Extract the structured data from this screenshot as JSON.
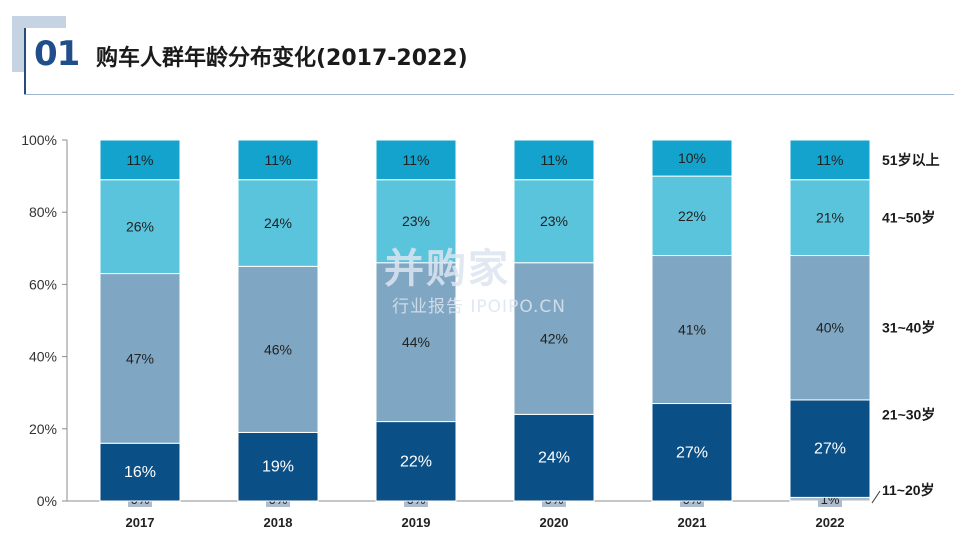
{
  "header": {
    "number": "01",
    "title": "购车人群年龄分布变化(2017-2022)"
  },
  "watermark": {
    "brand": "并购家",
    "sub": "行业报告 IPOIPO.CN"
  },
  "chart_data": {
    "type": "bar",
    "stacked": true,
    "categories": [
      "2017",
      "2018",
      "2019",
      "2020",
      "2021",
      "2022"
    ],
    "ylim": [
      0,
      100
    ],
    "yticks": [
      "0%",
      "20%",
      "40%",
      "60%",
      "80%",
      "100%"
    ],
    "grid": false,
    "legend_position": "right",
    "series": [
      {
        "name": "11~20岁",
        "color": "#aebccb",
        "values": [
          0,
          0,
          0,
          0,
          0,
          1
        ],
        "labels": [
          "0%",
          "0%",
          "0%",
          "0%",
          "0%",
          "1%"
        ]
      },
      {
        "name": "21~30岁",
        "color": "#0b4f87",
        "values": [
          16,
          19,
          22,
          24,
          27,
          27
        ],
        "labels": [
          "16%",
          "19%",
          "22%",
          "24%",
          "27%",
          "27%"
        ]
      },
      {
        "name": "31~40岁",
        "color": "#7fa6c2",
        "values": [
          47,
          46,
          44,
          42,
          41,
          40
        ],
        "labels": [
          "47%",
          "46%",
          "44%",
          "42%",
          "41%",
          "40%"
        ]
      },
      {
        "name": "41~50岁",
        "color": "#5bc4dd",
        "values": [
          26,
          24,
          23,
          23,
          22,
          21
        ],
        "labels": [
          "26%",
          "24%",
          "23%",
          "23%",
          "22%",
          "21%"
        ]
      },
      {
        "name": "51岁以上",
        "color": "#13a3cc",
        "values": [
          11,
          11,
          11,
          11,
          10,
          11
        ],
        "labels": [
          "11%",
          "11%",
          "11%",
          "11%",
          "10%",
          "11%"
        ]
      }
    ]
  }
}
